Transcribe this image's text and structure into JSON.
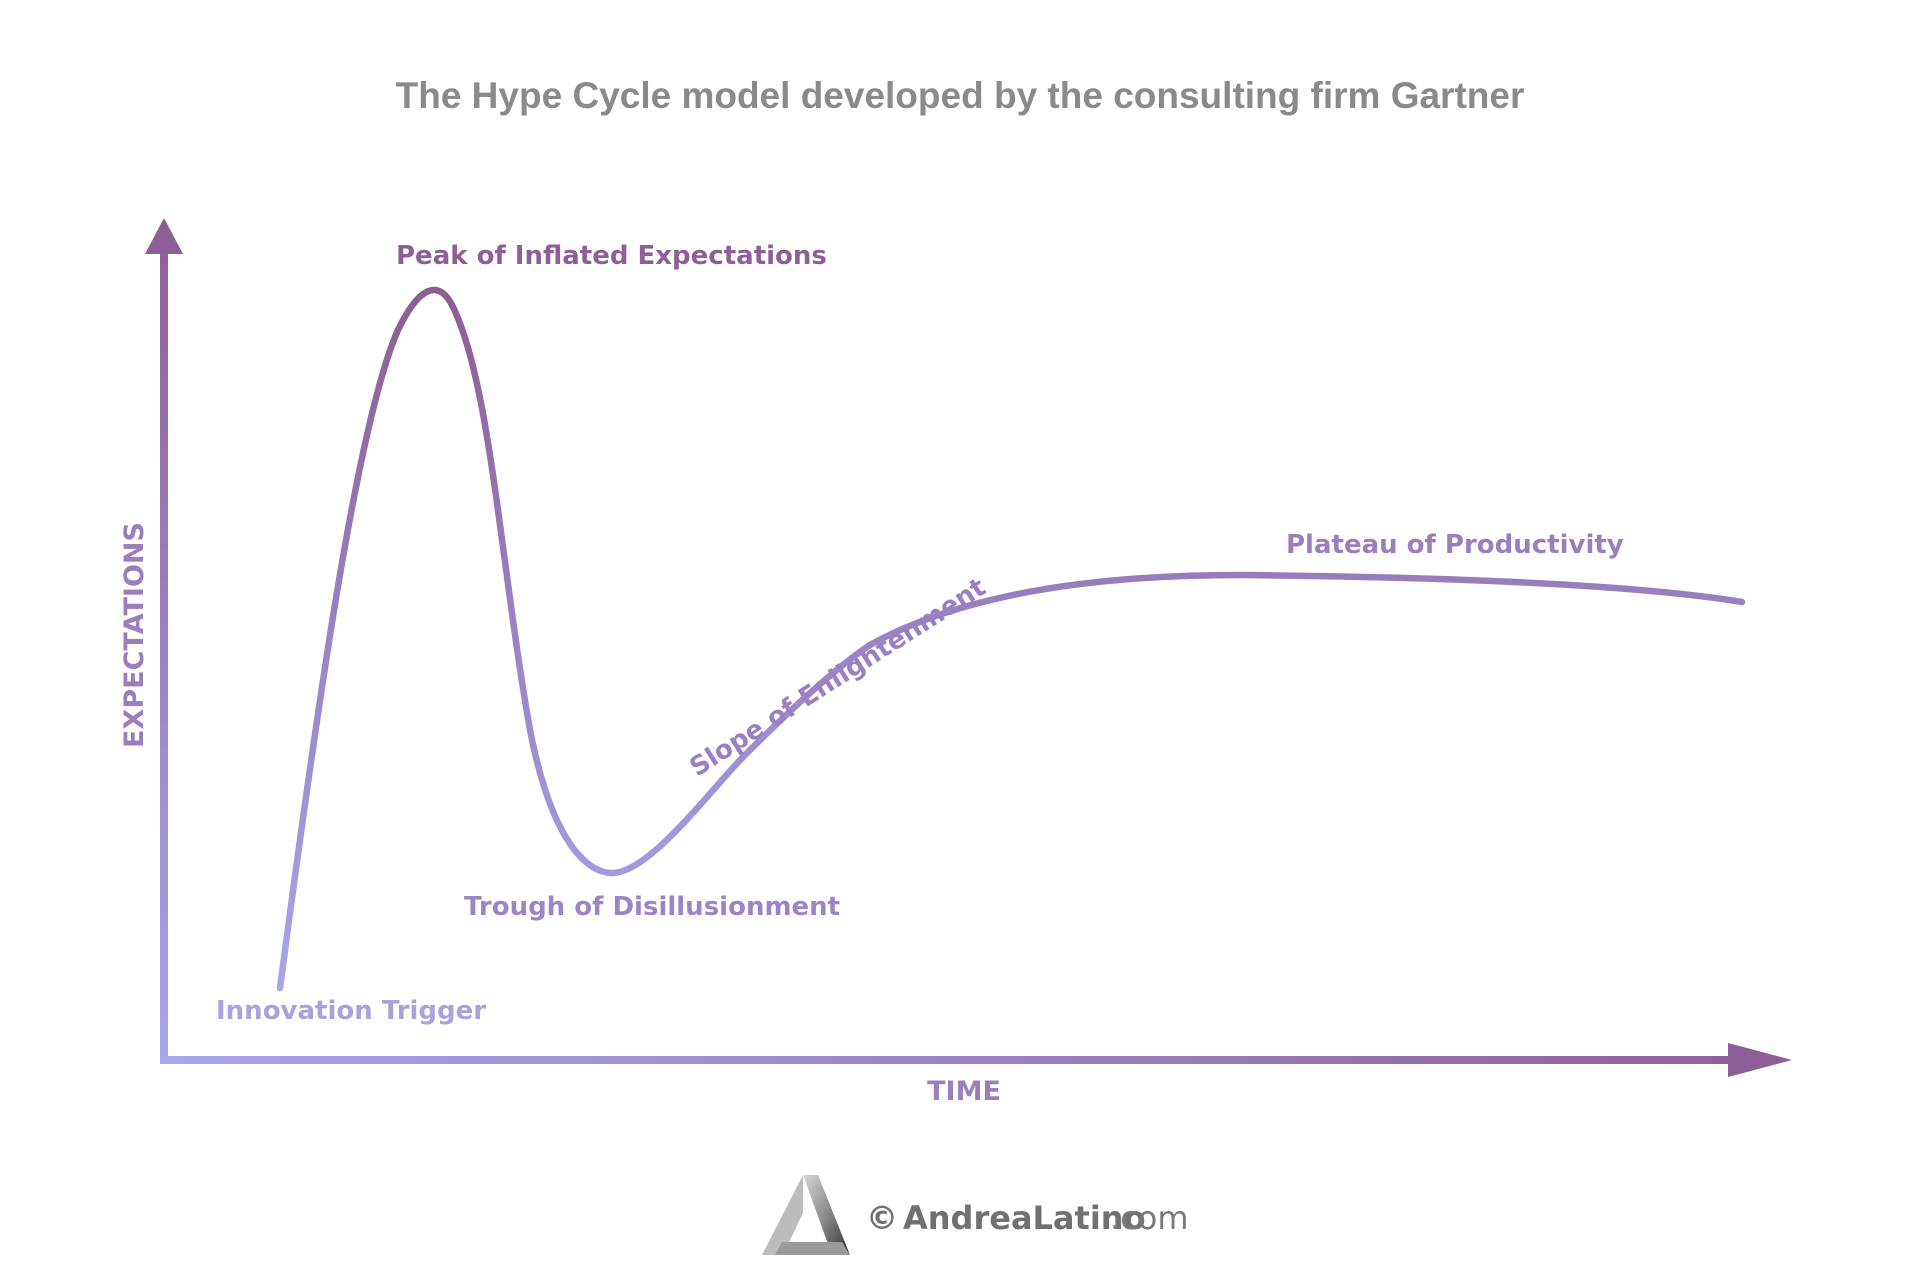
{
  "title": "The Hype Cycle model developed by the consulting firm Gartner",
  "axes": {
    "y_label": "EXPECTATIONS",
    "x_label": "TIME"
  },
  "phases": [
    {
      "id": "innovation-trigger",
      "label": "Innovation Trigger"
    },
    {
      "id": "peak",
      "label": "Peak of Inflated Expectations"
    },
    {
      "id": "trough",
      "label": "Trough of Disillusionment"
    },
    {
      "id": "slope",
      "label": "Slope of Enlightenment"
    },
    {
      "id": "plateau",
      "label": "Plateau of Productivity"
    }
  ],
  "credit": {
    "symbol": "©",
    "name": "AndreaLatino",
    "domain": ".com"
  },
  "colors": {
    "light_lavender": "#a7a6ec",
    "dark_purple": "#8e5f96",
    "label_mid": "#9a7fbb",
    "label_light": "#a8a2dd",
    "title_gray": "#8a8a8a"
  }
}
